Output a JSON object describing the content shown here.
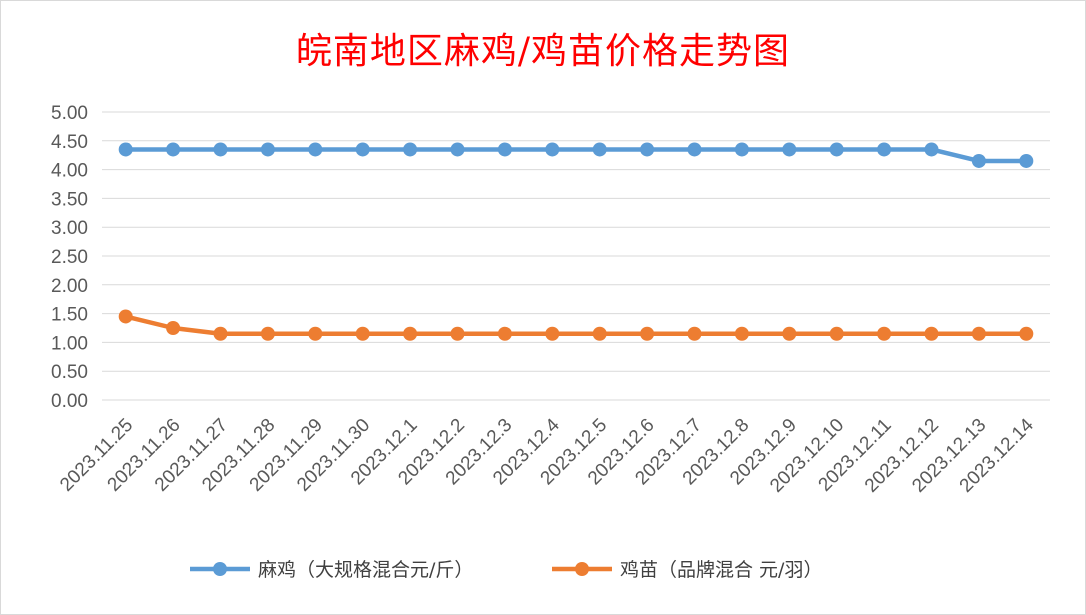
{
  "chart_data": {
    "type": "line",
    "title": "皖南地区麻鸡/鸡苗价格走势图",
    "categories": [
      "2023.11.25",
      "2023.11.26",
      "2023.11.27",
      "2023.11.28",
      "2023.11.29",
      "2023.11.30",
      "2023.12.1",
      "2023.12.2",
      "2023.12.3",
      "2023.12.4",
      "2023.12.5",
      "2023.12.6",
      "2023.12.7",
      "2023.12.8",
      "2023.12.9",
      "2023.12.10",
      "2023.12.11",
      "2023.12.12",
      "2023.12.13",
      "2023.12.14"
    ],
    "ylim": [
      0,
      5
    ],
    "yticks": [
      "0.00",
      "0.50",
      "1.00",
      "1.50",
      "2.00",
      "2.50",
      "3.00",
      "3.50",
      "4.00",
      "4.50",
      "5.00"
    ],
    "grid": true,
    "legend_position": "bottom",
    "series": [
      {
        "name": "麻鸡（大规格混合元/斤）",
        "color": "#5b9bd5",
        "values": [
          4.35,
          4.35,
          4.35,
          4.35,
          4.35,
          4.35,
          4.35,
          4.35,
          4.35,
          4.35,
          4.35,
          4.35,
          4.35,
          4.35,
          4.35,
          4.35,
          4.35,
          4.35,
          4.15,
          4.15
        ]
      },
      {
        "name": "鸡苗（品牌混合 元/羽）",
        "color": "#ed7d31",
        "values": [
          1.45,
          1.25,
          1.15,
          1.15,
          1.15,
          1.15,
          1.15,
          1.15,
          1.15,
          1.15,
          1.15,
          1.15,
          1.15,
          1.15,
          1.15,
          1.15,
          1.15,
          1.15,
          1.15,
          1.15
        ]
      }
    ]
  }
}
